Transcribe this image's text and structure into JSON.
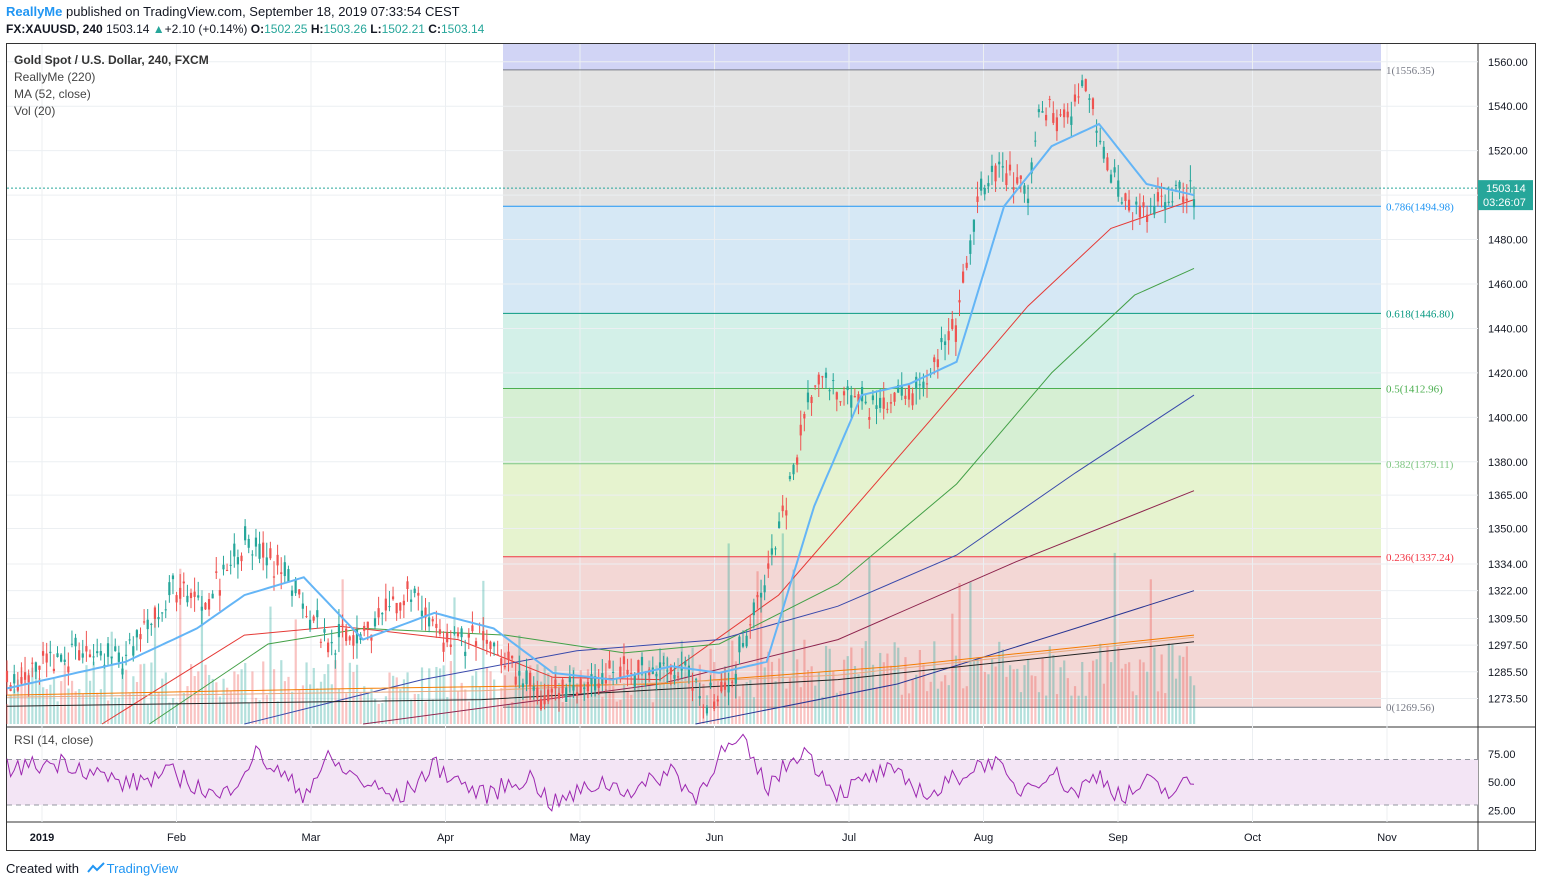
{
  "header": {
    "author": "ReallyMe",
    "published_text": " published on TradingView.com, September 18, 2019 07:33:54 CEST"
  },
  "ohlc": {
    "symbol": "FX:XAUUSD, 240",
    "last": "1503.14",
    "change": "+2.10 (+0.14%)",
    "o_label": "O:",
    "o": "1502.25",
    "h_label": "H:",
    "h": "1503.26",
    "l_label": "L:",
    "l": "1502.21",
    "c_label": "C:",
    "c": "1503.14"
  },
  "legend": {
    "title": "Gold Spot / U.S. Dollar, 240, FXCM",
    "line1": "ReallyMe (220)",
    "line2": "MA (52, close)",
    "line3": "Vol (20)",
    "rsi": "RSI (14, close)"
  },
  "price_tag": {
    "value": "1503.14",
    "countdown": "03:26:07"
  },
  "footer": {
    "created_with": "Created with",
    "brand": "TradingView"
  },
  "colors": {
    "up": "#26a69a",
    "down": "#ef5350",
    "ma52": "#64b5f6",
    "rsi": "#9c27b0",
    "rsi_band": "#f3e5f5",
    "fib_top": "#d1d4f5"
  },
  "chart_data": {
    "type": "candlestick",
    "title": "Gold Spot / U.S. Dollar, 240, FXCM",
    "ylim": [
      1262,
      1568
    ],
    "y_ticks": [
      1560.0,
      1540.0,
      1520.0,
      1500.0,
      1480.0,
      1460.0,
      1440.0,
      1420.0,
      1400.0,
      1380.0,
      1365.0,
      1350.0,
      1334.0,
      1322.0,
      1309.5,
      1297.5,
      1285.5,
      1273.5
    ],
    "x_labels": [
      "2019",
      "Feb",
      "Mar",
      "Apr",
      "May",
      "Jun",
      "Jul",
      "Aug",
      "Sep",
      "Oct",
      "Nov"
    ],
    "last_price": 1503.14,
    "fibonacci": [
      {
        "label": "1(1556.35)",
        "ratio": 1,
        "price": 1556.35,
        "color": "#787b86"
      },
      {
        "label": "0.786(1494.98)",
        "ratio": 0.786,
        "price": 1494.98,
        "color": "#2196f3"
      },
      {
        "label": "0.618(1446.80)",
        "ratio": 0.618,
        "price": 1446.8,
        "color": "#089981"
      },
      {
        "label": "0.5(1412.96)",
        "ratio": 0.5,
        "price": 1412.96,
        "color": "#4caf50"
      },
      {
        "label": "0.382(1379.11)",
        "ratio": 0.382,
        "price": 1379.11,
        "color": "#81c784"
      },
      {
        "label": "0.236(1337.24)",
        "ratio": 0.236,
        "price": 1337.24,
        "color": "#f23645"
      },
      {
        "label": "0(1269.56)",
        "ratio": 0,
        "price": 1269.56,
        "color": "#787b86"
      }
    ],
    "price_path": {
      "t": [
        0,
        0.06,
        0.1,
        0.14,
        0.17,
        0.2,
        0.24,
        0.27,
        0.31,
        0.34,
        0.37,
        0.4,
        0.45,
        0.48,
        0.51,
        0.55,
        0.57,
        0.59,
        0.61,
        0.63,
        0.65,
        0.68,
        0.73,
        0.76,
        0.78,
        0.8,
        0.82,
        0.84,
        0.86,
        0.87,
        0.89,
        0.91,
        0.93,
        0.95,
        0.98,
        1.0
      ],
      "p": [
        1282,
        1295,
        1290,
        1322,
        1318,
        1345,
        1325,
        1300,
        1306,
        1322,
        1298,
        1300,
        1273,
        1280,
        1283,
        1288,
        1283,
        1275,
        1280,
        1318,
        1345,
        1418,
        1405,
        1412,
        1422,
        1442,
        1500,
        1513,
        1497,
        1540,
        1535,
        1550,
        1510,
        1490,
        1500,
        1503
      ]
    },
    "ma52_path": {
      "t": [
        0,
        0.1,
        0.16,
        0.2,
        0.25,
        0.3,
        0.36,
        0.41,
        0.46,
        0.51,
        0.56,
        0.6,
        0.64,
        0.68,
        0.72,
        0.76,
        0.8,
        0.84,
        0.88,
        0.92,
        0.96,
        1.0
      ],
      "p": [
        1278,
        1290,
        1305,
        1320,
        1328,
        1300,
        1312,
        1305,
        1285,
        1282,
        1288,
        1285,
        1290,
        1360,
        1410,
        1415,
        1425,
        1495,
        1522,
        1532,
        1505,
        1500
      ]
    },
    "moving_averages": [
      {
        "color": "#e53935",
        "points": [
          [
            0.08,
            1262
          ],
          [
            0.2,
            1302
          ],
          [
            0.28,
            1306
          ],
          [
            0.38,
            1300
          ],
          [
            0.46,
            1283
          ],
          [
            0.55,
            1282
          ],
          [
            0.65,
            1320
          ],
          [
            0.78,
            1400
          ],
          [
            0.86,
            1450
          ],
          [
            0.93,
            1485
          ],
          [
            1.0,
            1498
          ]
        ]
      },
      {
        "color": "#43a047",
        "points": [
          [
            0.12,
            1262
          ],
          [
            0.22,
            1298
          ],
          [
            0.3,
            1305
          ],
          [
            0.42,
            1302
          ],
          [
            0.52,
            1294
          ],
          [
            0.6,
            1298
          ],
          [
            0.7,
            1325
          ],
          [
            0.8,
            1370
          ],
          [
            0.88,
            1420
          ],
          [
            0.95,
            1455
          ],
          [
            1.0,
            1467
          ]
        ]
      },
      {
        "color": "#3949ab",
        "points": [
          [
            0.2,
            1262
          ],
          [
            0.35,
            1282
          ],
          [
            0.48,
            1295
          ],
          [
            0.6,
            1300
          ],
          [
            0.7,
            1315
          ],
          [
            0.8,
            1338
          ],
          [
            0.9,
            1375
          ],
          [
            1.0,
            1410
          ]
        ]
      },
      {
        "color": "#8e244d",
        "points": [
          [
            0.3,
            1262
          ],
          [
            0.55,
            1280
          ],
          [
            0.7,
            1300
          ],
          [
            0.85,
            1335
          ],
          [
            1.0,
            1367
          ]
        ]
      },
      {
        "color": "#283593",
        "points": [
          [
            0.58,
            1262
          ],
          [
            0.75,
            1280
          ],
          [
            0.9,
            1305
          ],
          [
            1.0,
            1322
          ]
        ]
      },
      {
        "color": "#f57c00",
        "points": [
          [
            0.0,
            1275
          ],
          [
            0.3,
            1278
          ],
          [
            0.55,
            1280
          ],
          [
            0.75,
            1288
          ],
          [
            1.0,
            1302
          ]
        ]
      },
      {
        "color": "#e8a87c",
        "points": [
          [
            0.0,
            1274
          ],
          [
            0.4,
            1277
          ],
          [
            0.7,
            1284
          ],
          [
            1.0,
            1301
          ]
        ]
      },
      {
        "color": "#212121",
        "points": [
          [
            0.0,
            1270
          ],
          [
            0.4,
            1273
          ],
          [
            0.7,
            1282
          ],
          [
            1.0,
            1299
          ]
        ]
      }
    ],
    "rsi": {
      "ylim": [
        15,
        95
      ],
      "ticks": [
        75.0,
        50.0,
        25.0
      ],
      "upper": 70,
      "lower": 30,
      "t": [
        0,
        0.05,
        0.1,
        0.14,
        0.18,
        0.21,
        0.25,
        0.27,
        0.3,
        0.33,
        0.36,
        0.4,
        0.44,
        0.46,
        0.5,
        0.53,
        0.56,
        0.58,
        0.6,
        0.62,
        0.64,
        0.67,
        0.7,
        0.74,
        0.78,
        0.8,
        0.83,
        0.85,
        0.88,
        0.9,
        0.92,
        0.94,
        0.96,
        0.98,
        1.0
      ],
      "v": [
        62,
        68,
        48,
        58,
        35,
        75,
        40,
        70,
        50,
        35,
        65,
        38,
        55,
        30,
        50,
        42,
        62,
        35,
        75,
        85,
        45,
        80,
        40,
        60,
        38,
        55,
        70,
        42,
        60,
        40,
        58,
        35,
        50,
        40,
        52
      ]
    }
  }
}
